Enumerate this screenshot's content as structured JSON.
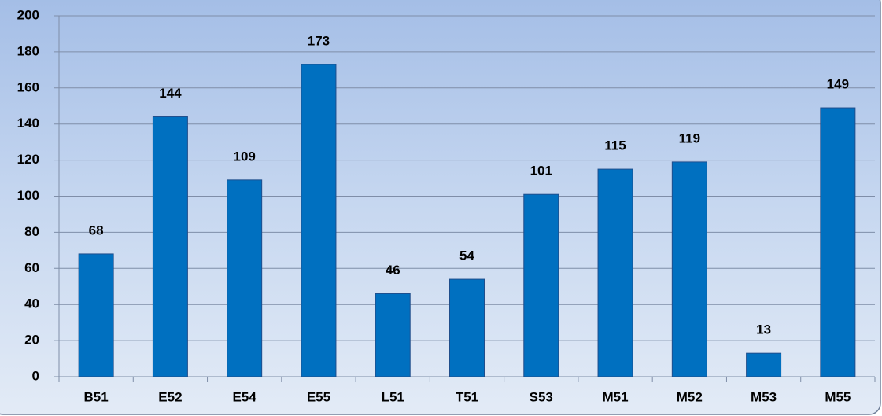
{
  "chart_data": {
    "type": "bar",
    "categories": [
      "B51",
      "E52",
      "E54",
      "E55",
      "L51",
      "T51",
      "S53",
      "M51",
      "M52",
      "M53",
      "M55"
    ],
    "values": [
      68,
      144,
      109,
      173,
      46,
      54,
      101,
      115,
      119,
      13,
      149
    ],
    "color": "#0070c0",
    "ylim": [
      0,
      200
    ],
    "yticks": [
      0,
      20,
      40,
      60,
      80,
      100,
      120,
      140,
      160,
      180,
      200
    ],
    "grid": true
  }
}
